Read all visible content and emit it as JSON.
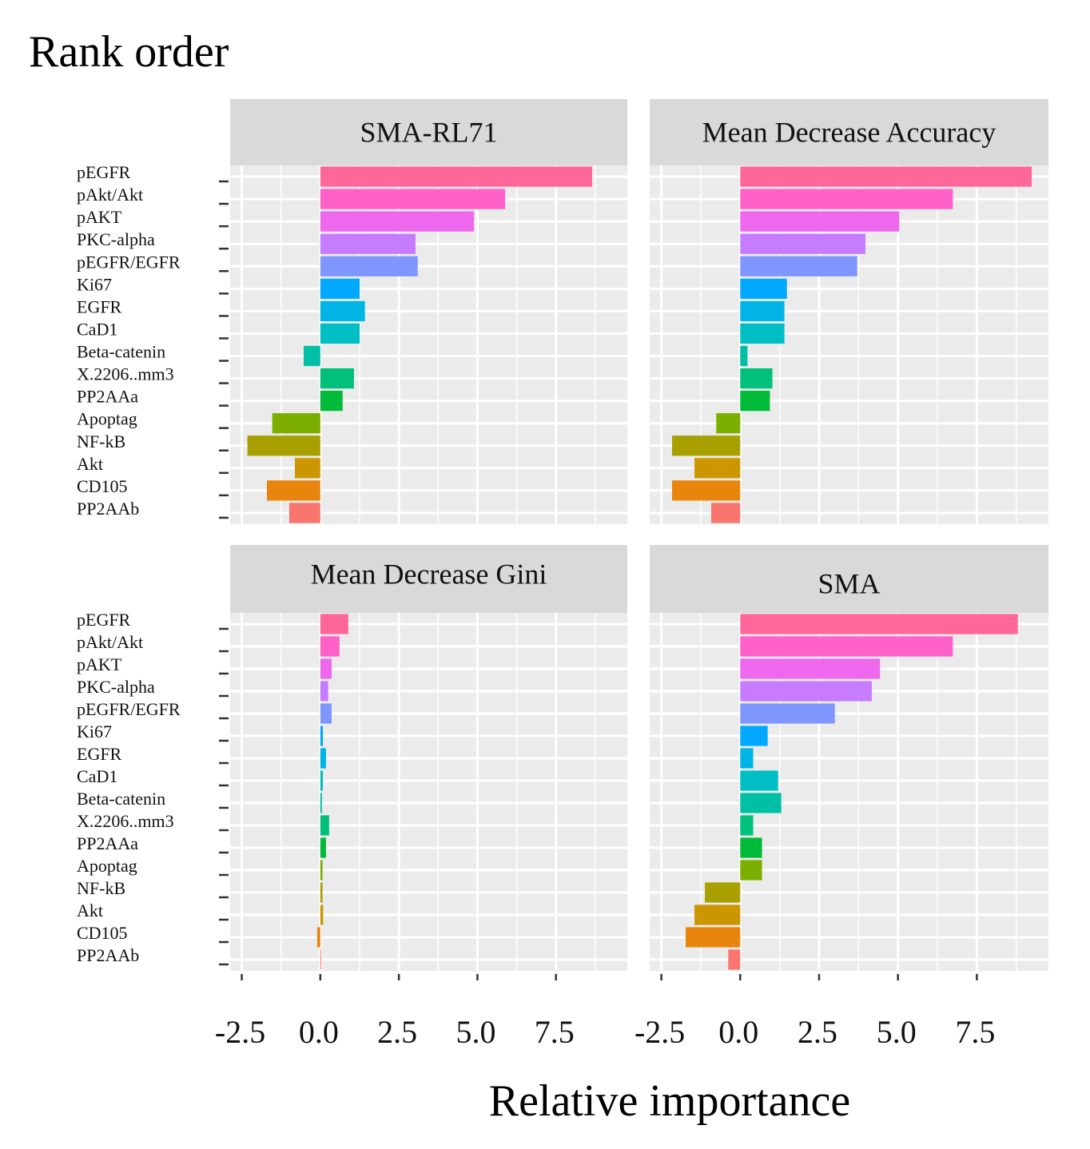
{
  "title": "Rank order",
  "chart_data": {
    "type": "bar",
    "orientation": "horizontal",
    "title": "Rank order",
    "xlabel": "Relative importance",
    "ylabel": "",
    "xlim": [
      -2.87,
      9.77
    ],
    "xticks": [
      -2.5,
      0.0,
      2.5,
      5.0,
      7.5
    ],
    "xtick_labels": [
      "-2.5",
      "0.0",
      "2.5",
      "5.0",
      "7.5"
    ],
    "grid": true,
    "facet_layout": "2x2",
    "categories": [
      "pEGFR",
      "pAkt/Akt",
      "pAKT",
      "PKC-alpha",
      "pEGFR/EGFR",
      "Ki67",
      "EGFR",
      "CaD1",
      "Beta-catenin",
      "X.2206..mm3",
      "PP2AAa",
      "Apoptag",
      "NF-kB",
      "Akt",
      "CD105",
      "PP2AAb"
    ],
    "colors": [
      "#FF6699",
      "#FF61C9",
      "#ED68ED",
      "#C77CFF",
      "#7F96FF",
      "#00A8FF",
      "#00B4E6",
      "#00BFC4",
      "#00BFA4",
      "#00C07B",
      "#00BA38",
      "#7CAE00",
      "#A8A000",
      "#CC9600",
      "#E8850D",
      "#F8766D"
    ],
    "series": [
      {
        "name": "SMA-RL71",
        "values": [
          8.65,
          5.88,
          4.89,
          3.03,
          3.1,
          1.25,
          1.42,
          1.25,
          -0.53,
          1.07,
          0.71,
          -1.53,
          -2.32,
          -0.81,
          -1.7,
          -0.99
        ]
      },
      {
        "name": "Mean Decrease Accuracy",
        "values": [
          9.24,
          6.74,
          5.04,
          3.97,
          3.71,
          1.48,
          1.4,
          1.4,
          0.23,
          1.02,
          0.94,
          -0.76,
          -2.16,
          -1.45,
          -2.16,
          -0.92
        ]
      },
      {
        "name": "Mean Decrease Gini",
        "values": [
          0.89,
          0.61,
          0.36,
          0.25,
          0.36,
          0.08,
          0.18,
          0.08,
          0.05,
          0.28,
          0.18,
          0.07,
          0.07,
          0.09,
          -0.1,
          0.01
        ]
      },
      {
        "name": "SMA",
        "values": [
          8.8,
          6.74,
          4.43,
          4.17,
          3.0,
          0.87,
          0.41,
          1.2,
          1.3,
          0.41,
          0.69,
          0.69,
          -1.12,
          -1.45,
          -1.73,
          -0.38
        ]
      }
    ]
  }
}
